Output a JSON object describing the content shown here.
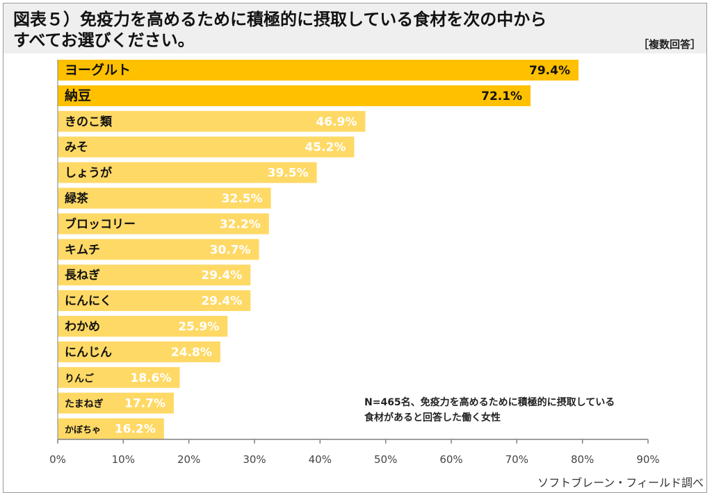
{
  "header": {
    "title_line1": "図表５）免疫力を高めるために積極的に摂取している食材を次の中から",
    "title_line2": "すべてお選びください。",
    "note": "［複数回答］"
  },
  "annotation": {
    "line1": "N=465名、免疫力を高めるために積極的に摂取している",
    "line2": "食材があると回答した働く女性"
  },
  "credit": "ソフトブレーン・フィールド調べ",
  "colors": {
    "top_bar": "#FFC000",
    "bar": "#FFD966",
    "axis": "#7f7f7f"
  },
  "chart_data": {
    "type": "bar",
    "orientation": "horizontal",
    "categories": [
      "ヨーグルト",
      "納豆",
      "きのこ類",
      "みそ",
      "しょうが",
      "緑茶",
      "ブロッコリー",
      "キムチ",
      "長ねぎ",
      "にんにく",
      "わかめ",
      "にんじん",
      "りんご",
      "たまねぎ",
      "かぼちゃ"
    ],
    "values": [
      79.4,
      72.1,
      46.9,
      45.2,
      39.5,
      32.5,
      32.2,
      30.7,
      29.4,
      29.4,
      25.9,
      24.8,
      18.6,
      17.7,
      16.2
    ],
    "value_labels": [
      "79.4%",
      "72.1%",
      "46.9%",
      "45.2%",
      "39.5%",
      "32.5%",
      "32.2%",
      "30.7%",
      "29.4%",
      "29.4%",
      "25.9%",
      "24.8%",
      "18.6%",
      "17.7%",
      "16.2%"
    ],
    "highlight_count": 2,
    "xlim": [
      0,
      90
    ],
    "xticks": [
      0,
      10,
      20,
      30,
      40,
      50,
      60,
      70,
      80,
      90
    ],
    "xtick_labels": [
      "0%",
      "10%",
      "20%",
      "30%",
      "40%",
      "50%",
      "60%",
      "70%",
      "80%",
      "90%"
    ],
    "grid": false,
    "legend": "none"
  }
}
